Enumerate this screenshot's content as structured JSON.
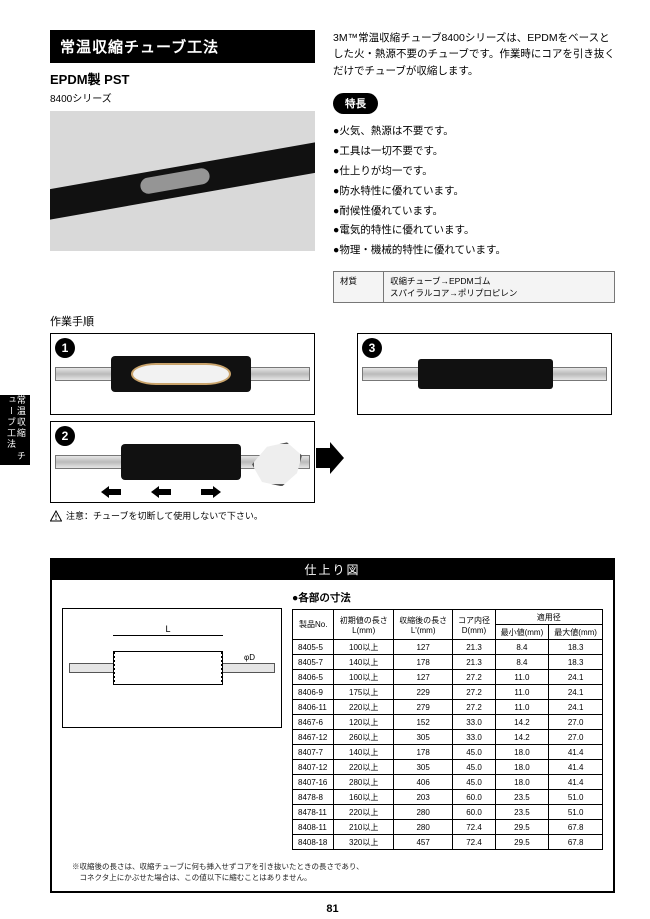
{
  "sideTab": "常温収縮\nチューブ工法",
  "title": "常温収縮チューブ工法",
  "subtitle1": "EPDM製 PST",
  "subtitle2": "8400シリーズ",
  "intro": "3M™常温収縮チューブ8400シリーズは、EPDMをベースとした火・熱源不要のチューブです。作業時にコアを引き抜くだけでチューブが収縮します。",
  "featuresLabel": "特長",
  "features": [
    "●火気、熱源は不要です。",
    "●工具は一切不要です。",
    "●仕上りが均一です。",
    "●防水特性に優れています。",
    "●耐候性優れています。",
    "●電気的特性に優れています。",
    "●物理・機械的特性に優れています。"
  ],
  "material": {
    "label": "材質",
    "value": "収縮チューブ→EPDMゴム\nスパイラルコア→ポリプロピレン"
  },
  "procedureLabel": "作業手順",
  "steps": {
    "n1": "1",
    "n2": "2",
    "n3": "3"
  },
  "warning": "注意：チューブを切断して使用しないで下さい。",
  "finishTitle": "仕上り図",
  "dimsTitle": "●各部の寸法",
  "columns": {
    "c1": "製品No.",
    "c2": "初期値の長さ\nL(mm)",
    "c3": "収縮後の長さ\nL'(mm)",
    "c4": "コア内径\nD(mm)",
    "c5": "適用径",
    "c5a": "最小値(mm)",
    "c5b": "最大値(mm)"
  },
  "rows": [
    [
      "8405-5",
      "100以上",
      "127",
      "21.3",
      "8.4",
      "18.3"
    ],
    [
      "8405-7",
      "140以上",
      "178",
      "21.3",
      "8.4",
      "18.3"
    ],
    [
      "8406-5",
      "100以上",
      "127",
      "27.2",
      "11.0",
      "24.1"
    ],
    [
      "8406-9",
      "175以上",
      "229",
      "27.2",
      "11.0",
      "24.1"
    ],
    [
      "8406-11",
      "220以上",
      "279",
      "27.2",
      "11.0",
      "24.1"
    ],
    [
      "8467-6",
      "120以上",
      "152",
      "33.0",
      "14.2",
      "27.0"
    ],
    [
      "8467-12",
      "260以上",
      "305",
      "33.0",
      "14.2",
      "27.0"
    ],
    [
      "8407-7",
      "140以上",
      "178",
      "45.0",
      "18.0",
      "41.4"
    ],
    [
      "8407-12",
      "220以上",
      "305",
      "45.0",
      "18.0",
      "41.4"
    ],
    [
      "8407-16",
      "280以上",
      "406",
      "45.0",
      "18.0",
      "41.4"
    ],
    [
      "8478-8",
      "160以上",
      "203",
      "60.0",
      "23.5",
      "51.0"
    ],
    [
      "8478-11",
      "220以上",
      "280",
      "60.0",
      "23.5",
      "51.0"
    ],
    [
      "8408-11",
      "210以上",
      "280",
      "72.4",
      "29.5",
      "67.8"
    ],
    [
      "8408-18",
      "320以上",
      "457",
      "72.4",
      "29.5",
      "67.8"
    ]
  ],
  "footnote": "※収縮後の長さは、収縮チューブに何も挿入せずコアを引き抜いたときの長さであり、\n　コネクタ上にかぶせた場合は、この値以下に縮むことはありません。",
  "pageNumber": "81",
  "dimL": "L",
  "dimD": "φD"
}
